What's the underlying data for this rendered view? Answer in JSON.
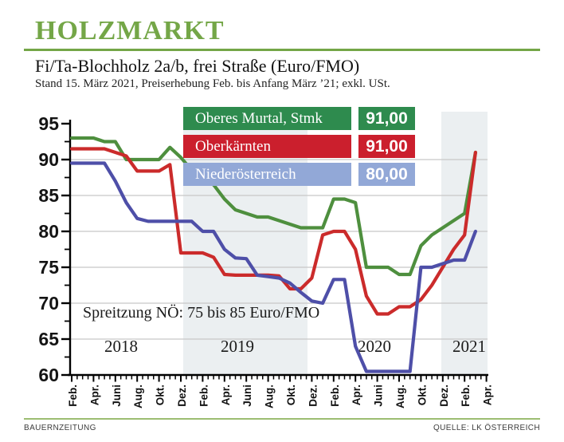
{
  "header": {
    "title": "HOLZMARKT",
    "subtitle": "Fi/Ta-Blochholz 2a/b, frei Straße (Euro/FMO)",
    "stand_line": "Stand 15. März 2021, Preiserhebung Feb. bis Anfang März ’21; exkl. USt."
  },
  "legend": {
    "items": [
      {
        "label": "Oberes Murtal, Stmk",
        "value": "91,00",
        "box_color": "#2e8b4e",
        "text_color": "#ffffff"
      },
      {
        "label": "Oberkärnten",
        "value": "91,00",
        "box_color": "#cb1f2d",
        "text_color": "#ffffff"
      },
      {
        "label": "Niederösterreich",
        "value": "80,00",
        "box_color": "#92a8d7",
        "text_color": "#ffffff"
      }
    ]
  },
  "annotation": "Spreitzung NÖ: 75 bis 85 Euro/FMO",
  "footer": {
    "left": "BAUERNZEITUNG",
    "right": "QUELLE: LK ÖSTERREICH"
  },
  "colors": {
    "title_green": "#74a647",
    "footer_rule_green": "#9cbd72",
    "band_gray": "#ebeff1",
    "grid_gray": "#c8c8c8",
    "axis_black": "#000000"
  },
  "chart_data": {
    "type": "line",
    "title": "Fi/Ta-Blochholz 2a/b, frei Straße (Euro/FMO)",
    "unit": "Euro/FMO",
    "ylim": [
      60,
      95
    ],
    "y_ticks": [
      60,
      65,
      70,
      75,
      80,
      85,
      90,
      95
    ],
    "grid": true,
    "x_tick_labels": [
      "Feb.",
      "Apr.",
      "Juni",
      "Aug.",
      "Okt.",
      "Dez.",
      "Feb.",
      "Apr.",
      "Juni",
      "Aug.",
      "Okt.",
      "Dez.",
      "Feb.",
      "Apr.",
      "Juni",
      "Aug.",
      "Okt.",
      "Dez.",
      "Feb.",
      "Apr."
    ],
    "year_labels": [
      "2018",
      "2019",
      "2020",
      "2021"
    ],
    "shaded_years": [
      "2019",
      "2021"
    ],
    "annotation": "Spreitzung NÖ: 75 bis 85 Euro/FMO",
    "months": [
      "Feb. 2018",
      "Mär. 2018",
      "Apr. 2018",
      "Mai 2018",
      "Juni 2018",
      "Juli 2018",
      "Aug. 2018",
      "Sep. 2018",
      "Okt. 2018",
      "Nov. 2018",
      "Dez. 2018",
      "Jän. 2019",
      "Feb. 2019",
      "Mär. 2019",
      "Apr. 2019",
      "Mai 2019",
      "Juni 2019",
      "Juli 2019",
      "Aug. 2019",
      "Sep. 2019",
      "Okt. 2019",
      "Nov. 2019",
      "Dez. 2019",
      "Jän. 2020",
      "Feb. 2020",
      "Mär. 2020",
      "Apr. 2020",
      "Mai 2020",
      "Juni 2020",
      "Juli 2020",
      "Aug. 2020",
      "Sep. 2020",
      "Okt. 2020",
      "Nov. 2020",
      "Dez. 2020",
      "Jän. 2021",
      "Feb. 2021",
      "Mär. 2021"
    ],
    "series": [
      {
        "name": "Oberes Murtal, Stmk",
        "color": "#4e8f3e",
        "current_value": "91,00",
        "values": [
          93,
          93,
          93,
          92.5,
          92.5,
          90,
          90,
          90,
          90,
          91.7,
          90.3,
          88.5,
          87,
          86.5,
          84.5,
          83,
          82.5,
          82,
          82,
          81.5,
          81,
          80.5,
          80.5,
          80.5,
          84.5,
          84.5,
          84,
          75,
          75,
          75,
          74,
          74,
          78,
          79.5,
          80.5,
          81.5,
          82.5,
          91
        ]
      },
      {
        "name": "Oberkärnten",
        "color": "#cb2b2b",
        "current_value": "91,00",
        "values": [
          91.5,
          91.5,
          91.5,
          91.5,
          91,
          90.5,
          88.4,
          88.4,
          88.4,
          89.3,
          77,
          77,
          77,
          76.4,
          74,
          73.9,
          73.9,
          73.9,
          73.9,
          73.8,
          72,
          72,
          73.5,
          79.5,
          80,
          80,
          77.5,
          71,
          68.5,
          68.5,
          69.5,
          69.5,
          70.5,
          72.5,
          75,
          77.5,
          79.5,
          91
        ]
      },
      {
        "name": "Niederösterreich",
        "color": "#4e4fa8",
        "current_value": "80,00",
        "values": [
          89.5,
          89.5,
          89.5,
          89.5,
          87,
          84,
          81.8,
          81.4,
          81.4,
          81.4,
          81.4,
          81.4,
          80,
          80,
          77.5,
          76.3,
          76.2,
          73.9,
          73.7,
          73.5,
          72.8,
          71.5,
          70.3,
          70,
          73.3,
          73.3,
          64,
          60.5,
          60.5,
          60.5,
          60.5,
          60.5,
          75,
          75,
          75.5,
          76,
          76,
          80
        ]
      }
    ]
  }
}
